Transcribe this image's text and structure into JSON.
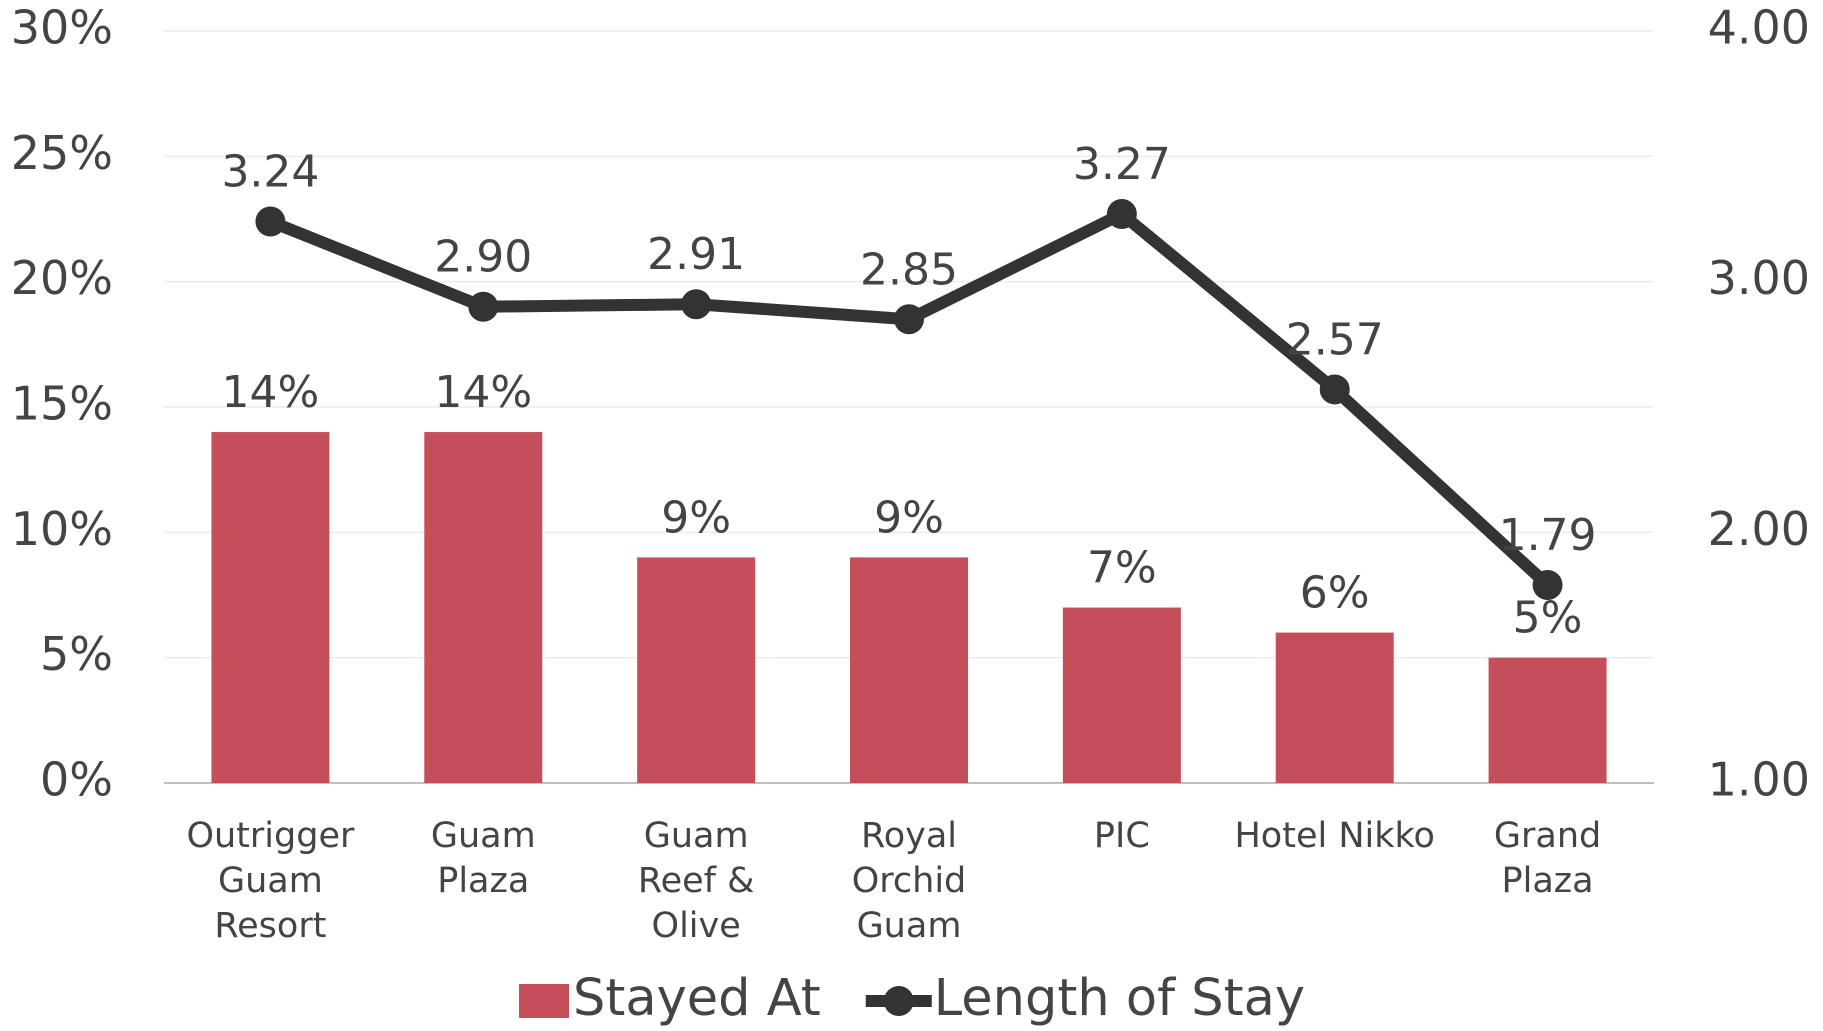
{
  "chart_data": {
    "type": "bar_line",
    "categories": [
      "Outrigger\nGuam\nResort",
      "Guam\nPlaza",
      "Guam\nReef &\nOlive",
      "Royal\nOrchid\nGuam",
      "PIC",
      "Hotel Nikko",
      "Grand\nPlaza"
    ],
    "series": [
      {
        "name": "Stayed At",
        "type": "bar",
        "color": "#c44e5a",
        "values": [
          14,
          14,
          9,
          9,
          7,
          6,
          5
        ],
        "value_labels": [
          "14%",
          "14%",
          "9%",
          "9%",
          "7%",
          "6%",
          "5%"
        ]
      },
      {
        "name": "Length of Stay",
        "type": "line",
        "axis": "y2",
        "color": "#333333",
        "values": [
          3.24,
          2.9,
          2.91,
          2.85,
          3.27,
          2.57,
          1.79
        ],
        "value_labels": [
          "3.24",
          "2.90",
          "2.91",
          "2.85",
          "3.27",
          "2.57",
          "1.79"
        ]
      }
    ],
    "ylim": [
      0,
      30
    ],
    "yticks": [
      {
        "value": 0,
        "label": "0%"
      },
      {
        "value": 5,
        "label": "5%"
      },
      {
        "value": 10,
        "label": "10%"
      },
      {
        "value": 15,
        "label": "15%"
      },
      {
        "value": 20,
        "label": "20%"
      },
      {
        "value": 25,
        "label": "25%"
      },
      {
        "value": 30,
        "label": "30%"
      }
    ],
    "y2lim": [
      1,
      4
    ],
    "y2ticks": [
      {
        "value": 1,
        "label": "1.00"
      },
      {
        "value": 2,
        "label": "2.00"
      },
      {
        "value": 3,
        "label": "3.00"
      },
      {
        "value": 4,
        "label": "4.00"
      }
    ],
    "grid": true,
    "legend": "bottom"
  }
}
